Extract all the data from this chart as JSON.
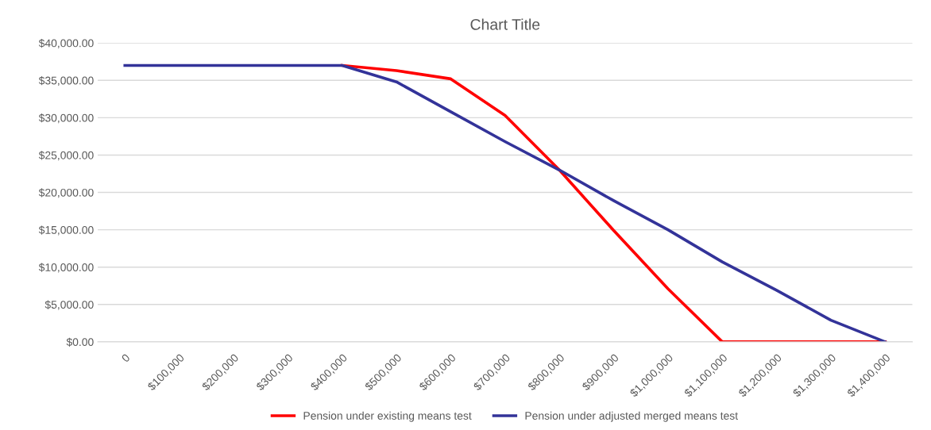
{
  "chart_data": {
    "type": "line",
    "title": "Chart Title",
    "categories": [
      "0",
      "$100,000",
      "$200,000",
      "$300,000",
      "$400,000",
      "$500,000",
      "$600,000",
      "$700,000",
      "$800,000",
      "$900,000",
      "$1,000,000",
      "$1,100,000",
      "$1,200,000",
      "$1,300,000",
      "$1,400,000"
    ],
    "series": [
      {
        "name": "Pension under existing means test",
        "color": "#ff0000",
        "values": [
          null,
          null,
          null,
          null,
          37000,
          36300,
          35200,
          30300,
          23000,
          14900,
          7100,
          0,
          0,
          0,
          0
        ]
      },
      {
        "name": "Pension under adjusted merged means test",
        "color": "#333399",
        "values": [
          37000,
          37000,
          37000,
          37000,
          37000,
          34800,
          30800,
          26800,
          23000,
          18900,
          15000,
          10700,
          6900,
          2900,
          0
        ]
      }
    ],
    "ylim": [
      0,
      40000
    ],
    "yticks": [
      {
        "value": 0,
        "label": "$0.00"
      },
      {
        "value": 5000,
        "label": "$5,000.00"
      },
      {
        "value": 10000,
        "label": "$10,000.00"
      },
      {
        "value": 15000,
        "label": "$15,000.00"
      },
      {
        "value": 20000,
        "label": "$20,000.00"
      },
      {
        "value": 25000,
        "label": "$25,000.00"
      },
      {
        "value": 30000,
        "label": "$30,000.00"
      },
      {
        "value": 35000,
        "label": "$35,000.00"
      },
      {
        "value": 40000,
        "label": "$40,000.00"
      }
    ],
    "grid": "y",
    "legend": "bottom",
    "marker": "none",
    "line_style": "solid"
  }
}
